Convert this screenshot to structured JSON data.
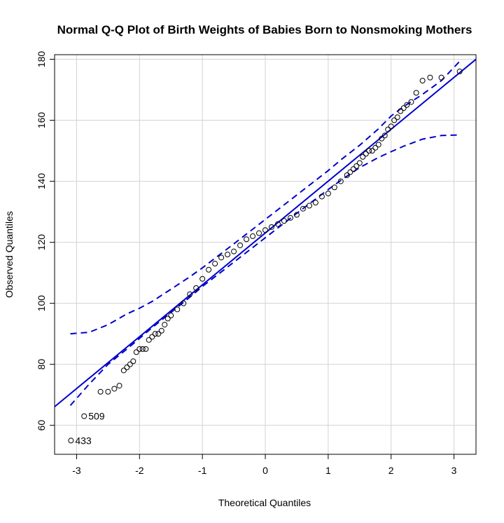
{
  "chart_data": {
    "type": "scatter",
    "title": "Normal Q-Q Plot of Birth Weights of Babies Born to Nonsmoking Mothers",
    "xlabel": "Theoretical Quantiles",
    "ylabel": "Observed Quantiles",
    "xlim": [
      -3.35,
      3.35
    ],
    "ylim": [
      50.5,
      181.5
    ],
    "xticks": [
      -3,
      -2,
      -1,
      0,
      1,
      2,
      3
    ],
    "yticks": [
      60,
      80,
      100,
      120,
      140,
      160,
      180
    ],
    "grid": true,
    "reference_line": {
      "intercept": 123.05,
      "slope": 17.0,
      "color": "#0000CD"
    },
    "confidence_band": {
      "x": [
        -3.1,
        -2.8,
        -2.5,
        -2.2,
        -2.0,
        -1.8,
        -1.5,
        -1.2,
        -1.0,
        -0.5,
        0.0,
        0.5,
        1.0,
        1.2,
        1.5,
        1.8,
        2.0,
        2.2,
        2.5,
        2.8,
        3.1
      ],
      "lower": [
        66.5,
        73.5,
        80.0,
        85.0,
        88.5,
        92.0,
        97.0,
        102.0,
        105.5,
        113.5,
        121.5,
        129.5,
        137.3,
        140.3,
        144.5,
        147.8,
        149.7,
        151.5,
        153.8,
        155.0,
        155.2
      ],
      "upper": [
        90.0,
        90.5,
        93.0,
        96.5,
        98.4,
        100.6,
        104.6,
        108.7,
        111.6,
        119.5,
        127.5,
        135.5,
        143.5,
        147.0,
        151.8,
        157.2,
        161.4,
        164.5,
        168.5,
        173.0,
        179.5
      ],
      "color": "#0000CD"
    },
    "points": {
      "x": [
        -3.09,
        -2.88,
        -2.62,
        -2.5,
        -2.4,
        -2.32,
        -2.25,
        -2.2,
        -2.15,
        -2.1,
        -2.05,
        -2.0,
        -1.95,
        -1.9,
        -1.85,
        -1.8,
        -1.75,
        -1.7,
        -1.65,
        -1.6,
        -1.55,
        -1.5,
        -1.4,
        -1.3,
        -1.2,
        -1.1,
        -1.0,
        -0.9,
        -0.8,
        -0.7,
        -0.6,
        -0.5,
        -0.4,
        -0.3,
        -0.2,
        -0.1,
        0.0,
        0.1,
        0.2,
        0.3,
        0.4,
        0.5,
        0.6,
        0.7,
        0.8,
        0.9,
        1.0,
        1.1,
        1.2,
        1.3,
        1.35,
        1.4,
        1.45,
        1.5,
        1.55,
        1.6,
        1.65,
        1.7,
        1.75,
        1.8,
        1.85,
        1.9,
        1.95,
        2.0,
        2.05,
        2.1,
        2.15,
        2.2,
        2.25,
        2.32,
        2.4,
        2.5,
        2.62,
        2.8,
        3.09
      ],
      "y": [
        55,
        63,
        71,
        71,
        72,
        73,
        78,
        79,
        80,
        81,
        84,
        85,
        85,
        85,
        88,
        89,
        90,
        90,
        91,
        93,
        95,
        96,
        98,
        100,
        103,
        105,
        108,
        111,
        113,
        115,
        116,
        117,
        119,
        121,
        122,
        123,
        124,
        125,
        126,
        127,
        128,
        129,
        131,
        132,
        133,
        135,
        136,
        138,
        140,
        142,
        143,
        144,
        145,
        146,
        148,
        149,
        150,
        150,
        151,
        152,
        154,
        155,
        157,
        158,
        160,
        161,
        163,
        164,
        165,
        166,
        169,
        173,
        174,
        174,
        176
      ],
      "labels": [
        {
          "x": -3.09,
          "y": 55,
          "text": "433"
        },
        {
          "x": -2.88,
          "y": 63,
          "text": "509"
        }
      ]
    }
  }
}
